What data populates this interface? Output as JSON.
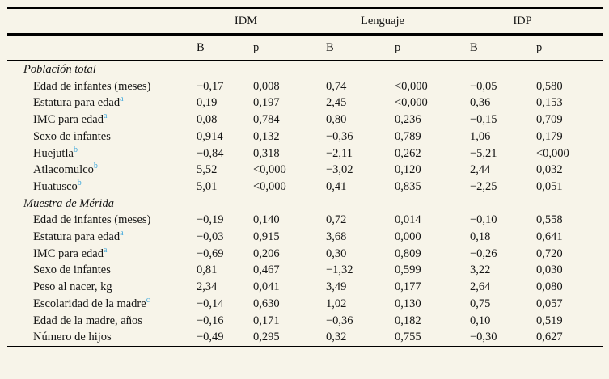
{
  "colors": {
    "background": "#f7f4e9",
    "superscript": "#3fa8dc",
    "rule": "#000000",
    "text": "#141414"
  },
  "table": {
    "column_groups": [
      {
        "label": "IDM"
      },
      {
        "label": "Lenguaje"
      },
      {
        "label": "IDP"
      }
    ],
    "sub_headers": [
      "B",
      "p",
      "B",
      "p",
      "B",
      "p"
    ],
    "sections": [
      {
        "title": "Población total",
        "rows": [
          {
            "label": "Edad de infantes (meses)",
            "sup": "",
            "values": [
              "−0,17",
              "0,008",
              "0,74",
              "<0,000",
              "−0,05",
              "0,580"
            ]
          },
          {
            "label": "Estatura para edad",
            "sup": "a",
            "values": [
              "0,19",
              "0,197",
              "2,45",
              "<0,000",
              "0,36",
              "0,153"
            ]
          },
          {
            "label": "IMC para edad",
            "sup": "a",
            "values": [
              "0,08",
              "0,784",
              "0,80",
              "0,236",
              "−0,15",
              "0,709"
            ]
          },
          {
            "label": "Sexo de infantes",
            "sup": "",
            "values": [
              "0,914",
              "0,132",
              "−0,36",
              "0,789",
              "1,06",
              "0,179"
            ]
          },
          {
            "label": "Huejutla",
            "sup": "b",
            "values": [
              "−0,84",
              "0,318",
              "−2,11",
              "0,262",
              "−5,21",
              "<0,000"
            ]
          },
          {
            "label": "Atlacomulco",
            "sup": "b",
            "values": [
              "5,52",
              "<0,000",
              "−3,02",
              "0,120",
              "2,44",
              "0,032"
            ]
          },
          {
            "label": "Huatusco",
            "sup": "b",
            "values": [
              "5,01",
              "<0,000",
              "0,41",
              "0,835",
              "−2,25",
              "0,051"
            ]
          }
        ]
      },
      {
        "title": "Muestra de Mérida",
        "rows": [
          {
            "label": "Edad de infantes (meses)",
            "sup": "",
            "values": [
              "−0,19",
              "0,140",
              "0,72",
              "0,014",
              "−0,10",
              "0,558"
            ]
          },
          {
            "label": "Estatura para edad",
            "sup": "a",
            "values": [
              "−0,03",
              "0,915",
              "3,68",
              "0,000",
              "0,18",
              "0,641"
            ]
          },
          {
            "label": "IMC para edad",
            "sup": "a",
            "values": [
              "−0,69",
              "0,206",
              "0,30",
              "0,809",
              "−0,26",
              "0,720"
            ]
          },
          {
            "label": "Sexo de infantes",
            "sup": "",
            "values": [
              "0,81",
              "0,467",
              "−1,32",
              "0,599",
              "3,22",
              "0,030"
            ]
          },
          {
            "label": "Peso al nacer, kg",
            "sup": "",
            "values": [
              "2,34",
              "0,041",
              "3,49",
              "0,177",
              "2,64",
              "0,080"
            ]
          },
          {
            "label": "Escolaridad de la madre",
            "sup": "c",
            "values": [
              "−0,14",
              "0,630",
              "1,02",
              "0,130",
              "0,75",
              "0,057"
            ]
          },
          {
            "label": "Edad de la madre, años",
            "sup": "",
            "values": [
              "−0,16",
              "0,171",
              "−0,36",
              "0,182",
              "0,10",
              "0,519"
            ]
          },
          {
            "label": "Número de hijos",
            "sup": "",
            "values": [
              "−0,49",
              "0,295",
              "0,32",
              "0,755",
              "−0,30",
              "0,627"
            ]
          }
        ]
      }
    ]
  }
}
